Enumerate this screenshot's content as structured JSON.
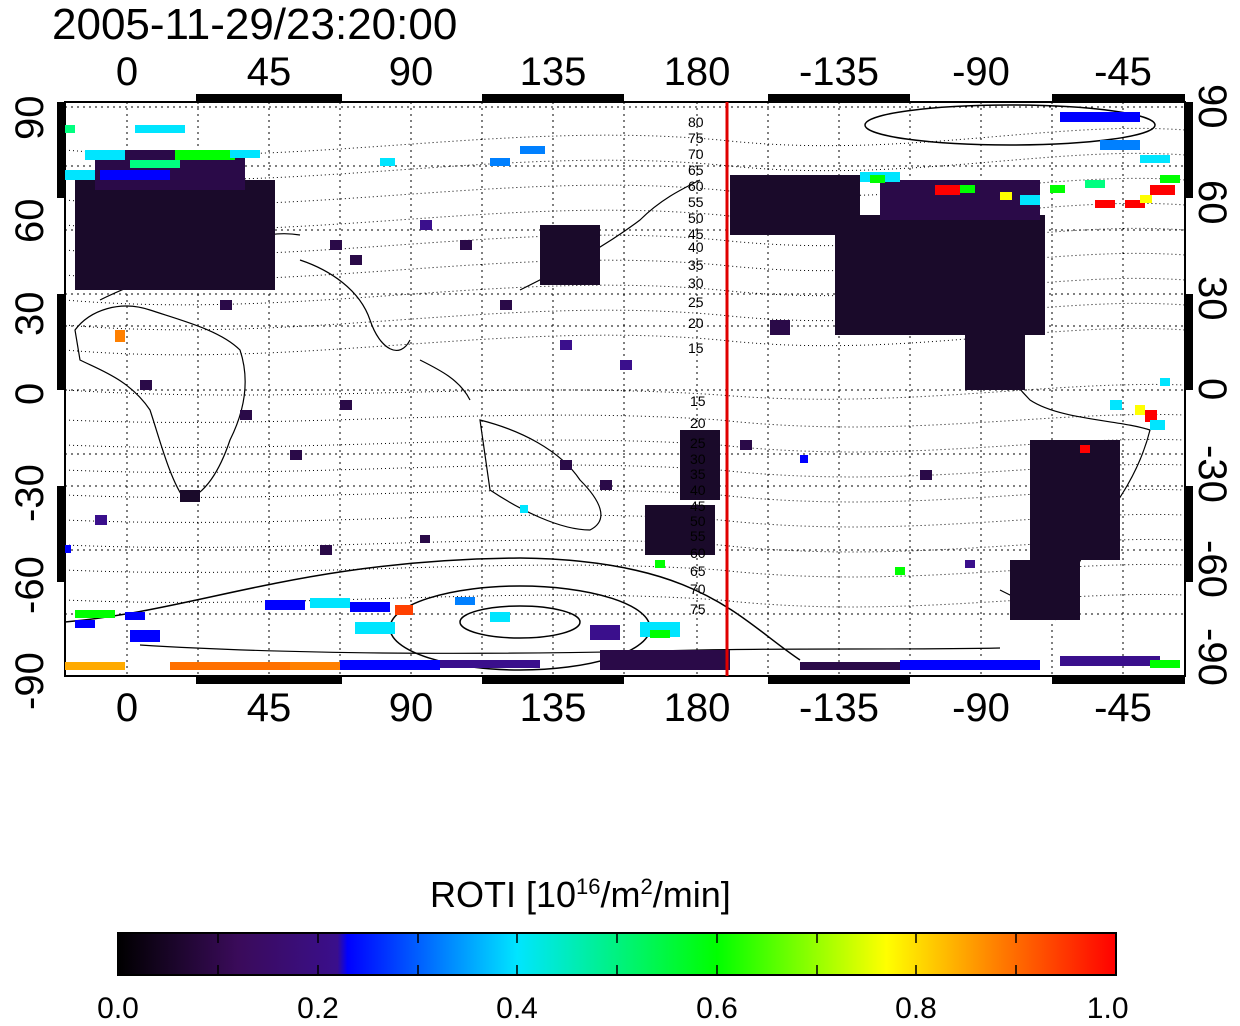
{
  "timestamp": "2005-11-29/23:20:00",
  "map": {
    "lon_ticks": [
      "0",
      "45",
      "90",
      "135",
      "180",
      "-135",
      "-90",
      "-45"
    ],
    "lat_ticks_left": [
      "90",
      "60",
      "30",
      "0",
      "-30",
      "-60",
      "-90"
    ],
    "lat_ticks_right": [
      "90",
      "60",
      "30",
      "0",
      "-30",
      "-60",
      "-90"
    ],
    "contour_labels_north": [
      "80",
      "75",
      "70",
      "65",
      "60",
      "55",
      "50",
      "45",
      "40",
      "35",
      "30",
      "25",
      "20",
      "15"
    ],
    "contour_labels_south": [
      "15",
      "20",
      "25",
      "30",
      "35",
      "40",
      "45",
      "50",
      "55",
      "60",
      "65",
      "70",
      "75"
    ],
    "terminator_color": "#e00000"
  },
  "colorbar": {
    "title_main": "ROTI  [10",
    "title_sup1": "16",
    "title_mid": "/m",
    "title_sup2": "2",
    "title_end": "/min]",
    "labels": [
      "0.0",
      "0.2",
      "0.4",
      "0.6",
      "0.8",
      "1.0"
    ],
    "colors": [
      "#000000",
      "#3a0b5a",
      "#3a0f8c",
      "#0000ff",
      "#00e5ff",
      "#00ff00",
      "#ffff00",
      "#ff8000",
      "#ff0000"
    ]
  }
}
